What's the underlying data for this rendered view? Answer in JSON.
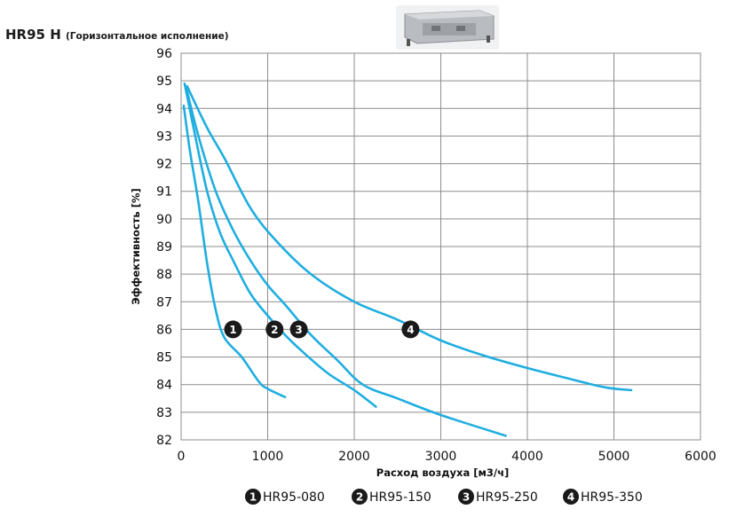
{
  "header": {
    "model": "HR95 H",
    "subtitle": "(Горизонтальное исполнение)"
  },
  "colors": {
    "series": "#1faee0",
    "badge": "#1a1a1a",
    "grid": "#8c8c8c"
  },
  "chart_data": {
    "type": "line",
    "title": "HR95 H (Горизонтальное исполнение)",
    "xlabel": "Расход воздуха [м3/ч]",
    "ylabel": "Эффективность  [%]",
    "xlim": [
      0,
      6000
    ],
    "ylim": [
      82,
      96
    ],
    "xticks": [
      0,
      1000,
      2000,
      3000,
      4000,
      5000,
      6000
    ],
    "yticks": [
      82,
      83,
      84,
      85,
      86,
      87,
      88,
      89,
      90,
      91,
      92,
      93,
      94,
      95,
      96
    ],
    "grid": true,
    "legend_position": "bottom",
    "series": [
      {
        "id": 1,
        "name": "HR95-080",
        "label_at": [
          600,
          86
        ],
        "points": [
          [
            30,
            94.1
          ],
          [
            100,
            92.5
          ],
          [
            200,
            90.6
          ],
          [
            300,
            88.4
          ],
          [
            400,
            86.7
          ],
          [
            500,
            85.7
          ],
          [
            700,
            85.0
          ],
          [
            900,
            84.1
          ],
          [
            1000,
            83.85
          ],
          [
            1200,
            83.55
          ]
        ]
      },
      {
        "id": 2,
        "name": "HR95-150",
        "label_at": [
          1080,
          86
        ],
        "points": [
          [
            40,
            94.9
          ],
          [
            150,
            93.2
          ],
          [
            300,
            91.0
          ],
          [
            450,
            89.5
          ],
          [
            600,
            88.5
          ],
          [
            800,
            87.3
          ],
          [
            1000,
            86.5
          ],
          [
            1200,
            85.8
          ],
          [
            1400,
            85.2
          ],
          [
            1700,
            84.4
          ],
          [
            2000,
            83.8
          ],
          [
            2250,
            83.2
          ]
        ]
      },
      {
        "id": 3,
        "name": "HR95-250",
        "label_at": [
          1360,
          86
        ],
        "points": [
          [
            55,
            94.8
          ],
          [
            200,
            93.0
          ],
          [
            400,
            91.0
          ],
          [
            600,
            89.6
          ],
          [
            800,
            88.5
          ],
          [
            1000,
            87.6
          ],
          [
            1200,
            86.9
          ],
          [
            1500,
            85.8
          ],
          [
            1800,
            84.9
          ],
          [
            2100,
            84.0
          ],
          [
            2500,
            83.5
          ],
          [
            3000,
            82.9
          ],
          [
            3750,
            82.15
          ]
        ]
      },
      {
        "id": 4,
        "name": "HR95-350",
        "label_at": [
          2650,
          86
        ],
        "points": [
          [
            70,
            94.8
          ],
          [
            300,
            93.3
          ],
          [
            500,
            92.2
          ],
          [
            800,
            90.4
          ],
          [
            1100,
            89.2
          ],
          [
            1500,
            88.0
          ],
          [
            2000,
            87.0
          ],
          [
            2500,
            86.35
          ],
          [
            3000,
            85.6
          ],
          [
            3500,
            85.05
          ],
          [
            4000,
            84.6
          ],
          [
            4500,
            84.2
          ],
          [
            4900,
            83.9
          ],
          [
            5200,
            83.8
          ]
        ]
      }
    ]
  }
}
